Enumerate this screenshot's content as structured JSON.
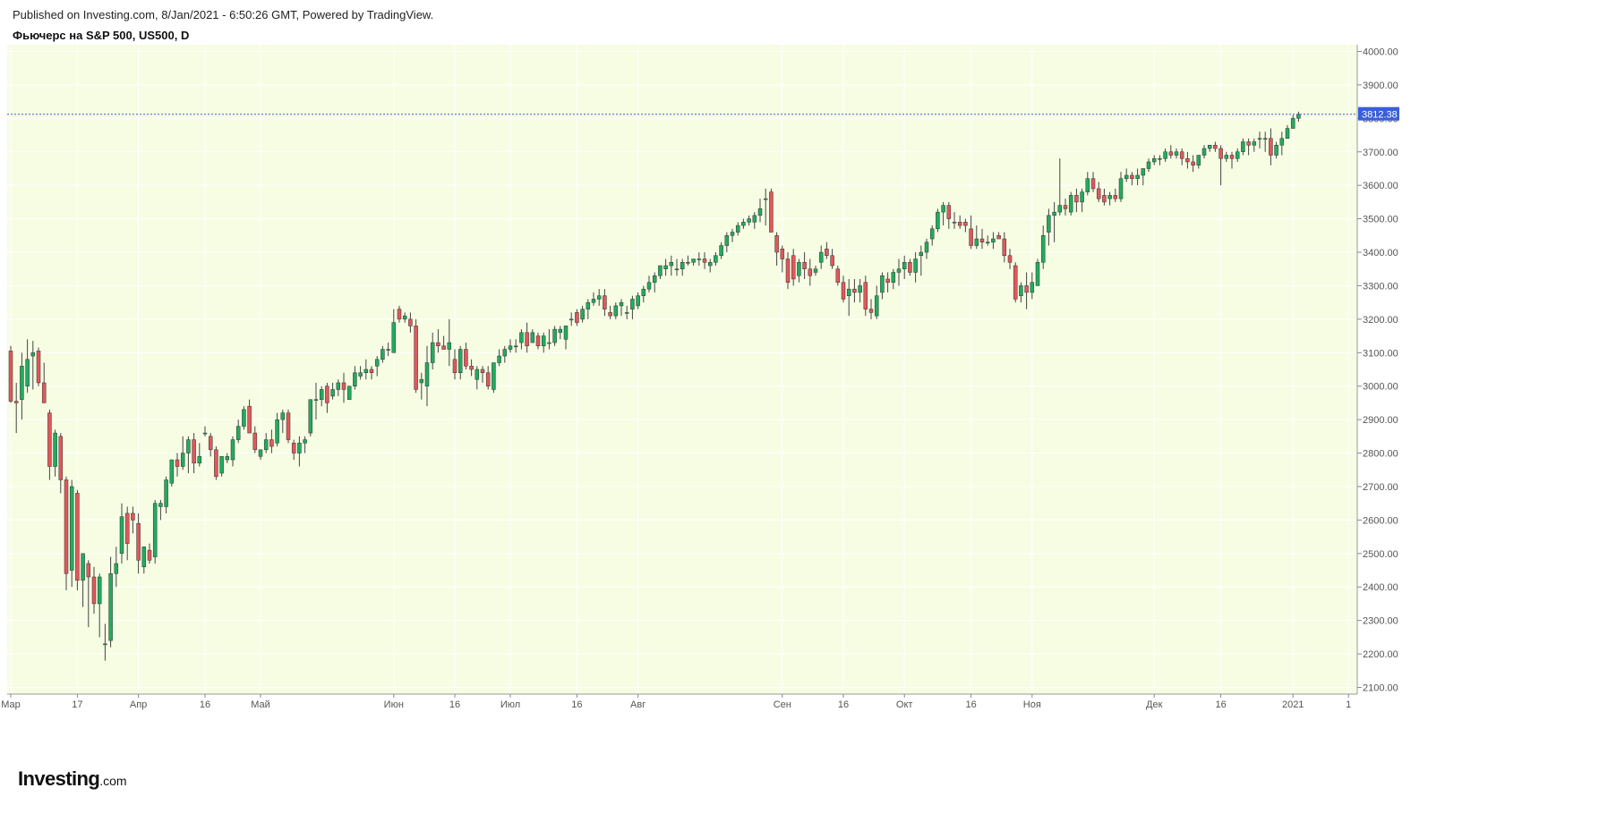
{
  "header": {
    "published": "Published on Investing.com, 8/Jan/2021 - 6:50:26 GMT, Powered by TradingView.",
    "title": "Фьючерс на S&P 500, US500, D"
  },
  "logo": {
    "main": "Investing",
    "domain": ".com"
  },
  "colors": {
    "plot_bg": "#f6fde3",
    "grid": "#ffffff",
    "up": "#22ab5e",
    "down": "#e0585b",
    "wick": "#444444",
    "price_line": "#3a5fd8",
    "price_label_bg": "#3a5fd8"
  },
  "chart_data": {
    "type": "candlestick",
    "title": "Фьючерс на S&P 500, US500, D",
    "ylim": [
      2080,
      4020
    ],
    "y_ticks": [
      2100,
      2200,
      2300,
      2400,
      2500,
      2600,
      2700,
      2800,
      2900,
      3000,
      3100,
      3200,
      3300,
      3400,
      3500,
      3600,
      3700,
      3800,
      3900,
      4000
    ],
    "y_tick_labels": [
      "2100.00",
      "2200.00",
      "2300.00",
      "2400.00",
      "2500.00",
      "2600.00",
      "2700.00",
      "2800.00",
      "2900.00",
      "3000.00",
      "3100.00",
      "3200.00",
      "3300.00",
      "3400.00",
      "3500.00",
      "3600.00",
      "3700.00",
      "3800.00",
      "3900.00",
      "4000.00"
    ],
    "x_ticks": [
      {
        "label": "Мар",
        "index": 0
      },
      {
        "label": "17",
        "index": 12
      },
      {
        "label": "Апр",
        "index": 23
      },
      {
        "label": "16",
        "index": 35
      },
      {
        "label": "Май",
        "index": 45
      },
      {
        "label": "Июн",
        "index": 69
      },
      {
        "label": "16",
        "index": 80
      },
      {
        "label": "Июл",
        "index": 90
      },
      {
        "label": "16",
        "index": 102
      },
      {
        "label": "Авг",
        "index": 113
      },
      {
        "label": "Сен",
        "index": 139
      },
      {
        "label": "16",
        "index": 150
      },
      {
        "label": "Окт",
        "index": 161
      },
      {
        "label": "16",
        "index": 173
      },
      {
        "label": "Ноя",
        "index": 184
      },
      {
        "label": "Дек",
        "index": 206
      },
      {
        "label": "16",
        "index": 218
      },
      {
        "label": "2021",
        "index": 231
      },
      {
        "label": "1",
        "index": 241
      }
    ],
    "last_price": 3812.38,
    "last_price_label": "3812.38",
    "candles": [
      [
        3105,
        3120,
        2950,
        2955
      ],
      [
        2955,
        3010,
        2860,
        2950
      ],
      [
        2960,
        3100,
        2900,
        3060
      ],
      [
        3000,
        3140,
        2980,
        3080
      ],
      [
        3090,
        3135,
        2990,
        3100
      ],
      [
        3105,
        3115,
        3000,
        3010
      ],
      [
        3010,
        3070,
        2960,
        2950
      ],
      [
        2920,
        2930,
        2720,
        2760
      ],
      [
        2760,
        2870,
        2730,
        2860
      ],
      [
        2850,
        2860,
        2680,
        2720
      ],
      [
        2720,
        2730,
        2390,
        2440
      ],
      [
        2450,
        2720,
        2400,
        2700
      ],
      [
        2680,
        2690,
        2390,
        2420
      ],
      [
        2420,
        2490,
        2340,
        2500
      ],
      [
        2470,
        2480,
        2280,
        2430
      ],
      [
        2430,
        2460,
        2320,
        2350
      ],
      [
        2350,
        2440,
        2250,
        2430
      ],
      [
        2230,
        2290,
        2180,
        2230
      ],
      [
        2240,
        2490,
        2220,
        2440
      ],
      [
        2440,
        2520,
        2400,
        2470
      ],
      [
        2500,
        2650,
        2470,
        2610
      ],
      [
        2620,
        2640,
        2480,
        2530
      ],
      [
        2620,
        2640,
        2560,
        2600
      ],
      [
        2590,
        2620,
        2440,
        2480
      ],
      [
        2460,
        2520,
        2440,
        2520
      ],
      [
        2510,
        2530,
        2470,
        2480
      ],
      [
        2490,
        2660,
        2470,
        2650
      ],
      [
        2640,
        2660,
        2600,
        2650
      ],
      [
        2640,
        2730,
        2620,
        2720
      ],
      [
        2710,
        2780,
        2700,
        2780
      ],
      [
        2780,
        2800,
        2730,
        2760
      ],
      [
        2760,
        2850,
        2750,
        2800
      ],
      [
        2800,
        2850,
        2740,
        2840
      ],
      [
        2840,
        2860,
        2740,
        2770
      ],
      [
        2770,
        2830,
        2760,
        2790
      ],
      [
        2860,
        2880,
        2850,
        2860
      ],
      [
        2850,
        2860,
        2790,
        2810
      ],
      [
        2810,
        2820,
        2720,
        2730
      ],
      [
        2740,
        2790,
        2730,
        2790
      ],
      [
        2780,
        2800,
        2770,
        2790
      ],
      [
        2780,
        2850,
        2760,
        2840
      ],
      [
        2840,
        2900,
        2830,
        2880
      ],
      [
        2880,
        2940,
        2870,
        2930
      ],
      [
        2940,
        2960,
        2860,
        2860
      ],
      [
        2860,
        2880,
        2800,
        2810
      ],
      [
        2790,
        2810,
        2780,
        2810
      ],
      [
        2810,
        2860,
        2800,
        2840
      ],
      [
        2840,
        2870,
        2800,
        2820
      ],
      [
        2830,
        2920,
        2820,
        2900
      ],
      [
        2900,
        2930,
        2860,
        2920
      ],
      [
        2920,
        2930,
        2830,
        2840
      ],
      [
        2830,
        2840,
        2780,
        2800
      ],
      [
        2800,
        2850,
        2760,
        2830
      ],
      [
        2830,
        2850,
        2800,
        2840
      ],
      [
        2860,
        2960,
        2850,
        2960
      ],
      [
        2960,
        3010,
        2900,
        2960
      ],
      [
        2960,
        3000,
        2940,
        2990
      ],
      [
        3000,
        3010,
        2920,
        2950
      ],
      [
        2970,
        3010,
        2960,
        2990
      ],
      [
        2990,
        3020,
        2970,
        3010
      ],
      [
        3010,
        3040,
        2950,
        2990
      ],
      [
        2960,
        3000,
        2960,
        3000
      ],
      [
        3000,
        3060,
        2990,
        3040
      ],
      [
        3030,
        3060,
        3020,
        3040
      ],
      [
        3040,
        3080,
        3020,
        3050
      ],
      [
        3050,
        3060,
        3020,
        3040
      ],
      [
        3060,
        3090,
        3030,
        3080
      ],
      [
        3080,
        3120,
        3070,
        3110
      ],
      [
        3110,
        3130,
        3090,
        3110
      ],
      [
        3100,
        3230,
        3100,
        3190
      ],
      [
        3230,
        3240,
        3190,
        3200
      ],
      [
        3200,
        3220,
        3190,
        3210
      ],
      [
        3200,
        3220,
        3160,
        3180
      ],
      [
        3180,
        3200,
        2980,
        2990
      ],
      [
        3010,
        3040,
        2960,
        3020
      ],
      [
        3000,
        3120,
        2940,
        3070
      ],
      [
        3070,
        3160,
        3050,
        3130
      ],
      [
        3130,
        3170,
        3100,
        3120
      ],
      [
        3120,
        3150,
        3110,
        3110
      ],
      [
        3110,
        3200,
        3060,
        3130
      ],
      [
        3080,
        3110,
        3020,
        3040
      ],
      [
        3040,
        3120,
        3020,
        3110
      ],
      [
        3110,
        3130,
        3050,
        3060
      ],
      [
        3060,
        3080,
        3030,
        3050
      ],
      [
        3020,
        3060,
        2990,
        3050
      ],
      [
        3050,
        3060,
        3010,
        3040
      ],
      [
        3040,
        3060,
        2990,
        3000
      ],
      [
        2990,
        3070,
        2980,
        3070
      ],
      [
        3070,
        3110,
        3060,
        3090
      ],
      [
        3090,
        3120,
        3070,
        3110
      ],
      [
        3110,
        3140,
        3100,
        3120
      ],
      [
        3120,
        3140,
        3100,
        3120
      ],
      [
        3130,
        3170,
        3110,
        3160
      ],
      [
        3160,
        3190,
        3100,
        3120
      ],
      [
        3130,
        3170,
        3130,
        3160
      ],
      [
        3150,
        3160,
        3110,
        3120
      ],
      [
        3120,
        3160,
        3100,
        3150
      ],
      [
        3130,
        3170,
        3110,
        3130
      ],
      [
        3130,
        3180,
        3120,
        3170
      ],
      [
        3160,
        3180,
        3140,
        3170
      ],
      [
        3140,
        3180,
        3110,
        3180
      ],
      [
        3200,
        3220,
        3180,
        3200
      ],
      [
        3220,
        3230,
        3180,
        3190
      ],
      [
        3200,
        3240,
        3190,
        3230
      ],
      [
        3230,
        3260,
        3200,
        3250
      ],
      [
        3250,
        3280,
        3240,
        3260
      ],
      [
        3260,
        3290,
        3240,
        3270
      ],
      [
        3270,
        3290,
        3210,
        3230
      ],
      [
        3220,
        3240,
        3200,
        3210
      ],
      [
        3210,
        3250,
        3200,
        3240
      ],
      [
        3240,
        3260,
        3210,
        3250
      ],
      [
        3220,
        3240,
        3200,
        3220
      ],
      [
        3230,
        3270,
        3200,
        3260
      ],
      [
        3240,
        3280,
        3230,
        3270
      ],
      [
        3270,
        3300,
        3250,
        3290
      ],
      [
        3290,
        3330,
        3280,
        3310
      ],
      [
        3310,
        3340,
        3280,
        3330
      ],
      [
        3330,
        3360,
        3320,
        3360
      ],
      [
        3350,
        3380,
        3330,
        3360
      ],
      [
        3360,
        3390,
        3330,
        3370
      ],
      [
        3350,
        3380,
        3330,
        3350
      ],
      [
        3350,
        3380,
        3330,
        3370
      ],
      [
        3370,
        3390,
        3360,
        3370
      ],
      [
        3370,
        3380,
        3360,
        3380
      ],
      [
        3380,
        3400,
        3360,
        3380
      ],
      [
        3380,
        3400,
        3350,
        3370
      ],
      [
        3360,
        3380,
        3340,
        3370
      ],
      [
        3370,
        3400,
        3360,
        3390
      ],
      [
        3390,
        3430,
        3380,
        3420
      ],
      [
        3420,
        3460,
        3400,
        3450
      ],
      [
        3450,
        3470,
        3430,
        3460
      ],
      [
        3460,
        3490,
        3450,
        3480
      ],
      [
        3480,
        3500,
        3470,
        3490
      ],
      [
        3490,
        3510,
        3480,
        3500
      ],
      [
        3490,
        3520,
        3470,
        3510
      ],
      [
        3510,
        3560,
        3490,
        3530
      ],
      [
        3560,
        3590,
        3480,
        3560
      ],
      [
        3580,
        3590,
        3460,
        3460
      ],
      [
        3450,
        3460,
        3360,
        3400
      ],
      [
        3410,
        3420,
        3340,
        3380
      ],
      [
        3380,
        3400,
        3290,
        3310
      ],
      [
        3390,
        3410,
        3300,
        3320
      ],
      [
        3330,
        3380,
        3310,
        3370
      ],
      [
        3370,
        3400,
        3320,
        3350
      ],
      [
        3350,
        3380,
        3300,
        3330
      ],
      [
        3340,
        3360,
        3330,
        3350
      ],
      [
        3370,
        3420,
        3350,
        3400
      ],
      [
        3410,
        3430,
        3380,
        3390
      ],
      [
        3390,
        3410,
        3350,
        3360
      ],
      [
        3350,
        3360,
        3300,
        3310
      ],
      [
        3310,
        3330,
        3250,
        3260
      ],
      [
        3270,
        3320,
        3210,
        3290
      ],
      [
        3290,
        3320,
        3250,
        3280
      ],
      [
        3280,
        3320,
        3250,
        3300
      ],
      [
        3310,
        3330,
        3210,
        3230
      ],
      [
        3230,
        3260,
        3200,
        3220
      ],
      [
        3210,
        3300,
        3200,
        3270
      ],
      [
        3280,
        3340,
        3260,
        3330
      ],
      [
        3320,
        3340,
        3280,
        3310
      ],
      [
        3310,
        3350,
        3290,
        3340
      ],
      [
        3340,
        3380,
        3300,
        3350
      ],
      [
        3350,
        3390,
        3320,
        3370
      ],
      [
        3370,
        3380,
        3330,
        3340
      ],
      [
        3340,
        3400,
        3310,
        3380
      ],
      [
        3390,
        3420,
        3330,
        3400
      ],
      [
        3400,
        3440,
        3380,
        3430
      ],
      [
        3440,
        3480,
        3420,
        3470
      ],
      [
        3470,
        3530,
        3460,
        3520
      ],
      [
        3520,
        3550,
        3480,
        3540
      ],
      [
        3540,
        3550,
        3470,
        3500
      ],
      [
        3490,
        3520,
        3470,
        3490
      ],
      [
        3490,
        3510,
        3470,
        3480
      ],
      [
        3490,
        3500,
        3460,
        3480
      ],
      [
        3470,
        3510,
        3410,
        3420
      ],
      [
        3420,
        3480,
        3410,
        3440
      ],
      [
        3440,
        3470,
        3410,
        3430
      ],
      [
        3430,
        3450,
        3420,
        3430
      ],
      [
        3430,
        3460,
        3410,
        3440
      ],
      [
        3450,
        3460,
        3440,
        3440
      ],
      [
        3440,
        3460,
        3370,
        3390
      ],
      [
        3390,
        3410,
        3350,
        3370
      ],
      [
        3360,
        3370,
        3250,
        3260
      ],
      [
        3270,
        3310,
        3250,
        3300
      ],
      [
        3300,
        3340,
        3230,
        3280
      ],
      [
        3280,
        3340,
        3260,
        3310
      ],
      [
        3300,
        3380,
        3300,
        3370
      ],
      [
        3370,
        3480,
        3350,
        3450
      ],
      [
        3460,
        3530,
        3420,
        3510
      ],
      [
        3510,
        3550,
        3430,
        3520
      ],
      [
        3520,
        3680,
        3510,
        3540
      ],
      [
        3540,
        3560,
        3510,
        3530
      ],
      [
        3520,
        3580,
        3510,
        3570
      ],
      [
        3570,
        3590,
        3520,
        3550
      ],
      [
        3550,
        3590,
        3520,
        3580
      ],
      [
        3580,
        3640,
        3570,
        3620
      ],
      [
        3620,
        3640,
        3580,
        3590
      ],
      [
        3590,
        3610,
        3550,
        3560
      ],
      [
        3570,
        3590,
        3540,
        3550
      ],
      [
        3560,
        3580,
        3540,
        3570
      ],
      [
        3570,
        3590,
        3550,
        3560
      ],
      [
        3560,
        3640,
        3550,
        3620
      ],
      [
        3620,
        3650,
        3610,
        3630
      ],
      [
        3630,
        3640,
        3600,
        3620
      ],
      [
        3620,
        3650,
        3600,
        3630
      ],
      [
        3630,
        3650,
        3600,
        3650
      ],
      [
        3650,
        3680,
        3640,
        3670
      ],
      [
        3670,
        3690,
        3660,
        3680
      ],
      [
        3680,
        3690,
        3660,
        3680
      ],
      [
        3680,
        3710,
        3670,
        3700
      ],
      [
        3700,
        3720,
        3680,
        3690
      ],
      [
        3690,
        3710,
        3680,
        3700
      ],
      [
        3700,
        3710,
        3660,
        3680
      ],
      [
        3680,
        3700,
        3650,
        3670
      ],
      [
        3670,
        3690,
        3640,
        3660
      ],
      [
        3660,
        3690,
        3650,
        3690
      ],
      [
        3690,
        3720,
        3680,
        3710
      ],
      [
        3710,
        3720,
        3700,
        3720
      ],
      [
        3720,
        3730,
        3700,
        3710
      ],
      [
        3710,
        3720,
        3600,
        3680
      ],
      [
        3680,
        3700,
        3670,
        3690
      ],
      [
        3690,
        3700,
        3650,
        3680
      ],
      [
        3680,
        3710,
        3670,
        3700
      ],
      [
        3700,
        3740,
        3690,
        3730
      ],
      [
        3730,
        3740,
        3690,
        3720
      ],
      [
        3720,
        3740,
        3700,
        3730
      ],
      [
        3740,
        3760,
        3710,
        3740
      ],
      [
        3740,
        3760,
        3700,
        3740
      ],
      [
        3740,
        3770,
        3660,
        3690
      ],
      [
        3690,
        3730,
        3680,
        3720
      ],
      [
        3720,
        3760,
        3690,
        3740
      ],
      [
        3740,
        3780,
        3740,
        3770
      ],
      [
        3770,
        3810,
        3770,
        3800
      ],
      [
        3800,
        3820,
        3790,
        3812
      ]
    ]
  }
}
